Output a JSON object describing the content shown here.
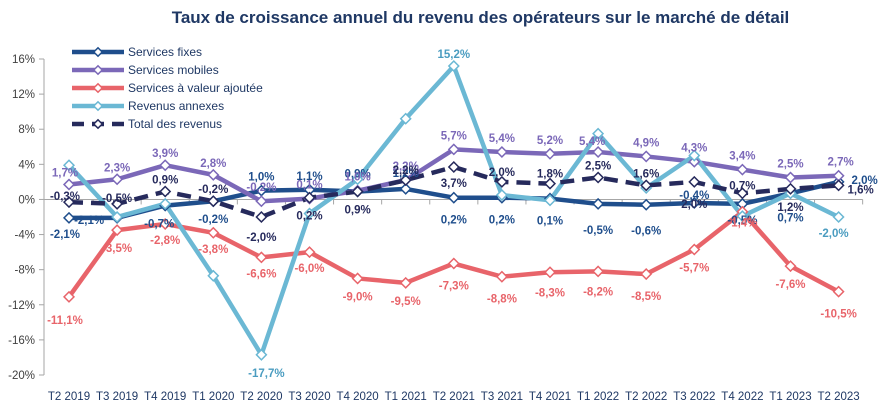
{
  "chart_data": {
    "type": "line",
    "title": "Taux de croissance annuel du revenu des opérateurs sur le marché de détail",
    "xlabel": "",
    "ylabel": "",
    "ylim": [
      -20,
      16
    ],
    "yticks": [
      16,
      12,
      8,
      4,
      0,
      -4,
      -8,
      -12,
      -16,
      -20
    ],
    "ytick_labels": [
      "16%",
      "12%",
      "8%",
      "4%",
      "0%",
      "-4%",
      "-8%",
      "-12%",
      "-16%",
      "-20%"
    ],
    "grid": false,
    "legend_position": "top-left",
    "categories": [
      "T2 2019",
      "T3 2019",
      "T4 2019",
      "T1 2020",
      "T2 2020",
      "T3 2020",
      "T4 2020",
      "T1 2021",
      "T2 2021",
      "T3 2021",
      "T4 2021",
      "T1 2022",
      "T2 2022",
      "T3 2022",
      "T4 2022",
      "T1 2023",
      "T2 2023"
    ],
    "series": [
      {
        "name": "Services fixes",
        "color": "#1f4e8c",
        "dashed": false,
        "values": [
          -2.1,
          -2.1,
          -0.7,
          -0.2,
          1.0,
          1.1,
          0.9,
          1.2,
          0.2,
          0.2,
          0.1,
          -0.5,
          -0.6,
          -0.4,
          -0.5,
          0.7,
          2.0
        ],
        "labels": [
          "-2,1%",
          "-2,1%",
          "-0,7%",
          "-0,2%",
          "1,0%",
          "1,1%",
          "0,9%",
          "1,2%",
          "0,2%",
          "0,2%",
          "0,1%",
          "-0,5%",
          "-0,6%",
          "-0,4%",
          "-0,5%",
          "0,7%",
          "2,0%"
        ]
      },
      {
        "name": "Services mobiles",
        "color": "#7b68b8",
        "dashed": false,
        "values": [
          1.7,
          2.3,
          3.9,
          2.8,
          -0.2,
          0.1,
          1.0,
          2.2,
          5.7,
          5.4,
          5.2,
          5.4,
          4.9,
          4.3,
          3.4,
          2.5,
          2.7
        ],
        "labels": [
          "1,7%",
          "2,3%",
          "3,9%",
          "2,8%",
          "-0,2%",
          "0,1%",
          "1,0%",
          "2,2%",
          "5,7%",
          "5,4%",
          "5,2%",
          "5,4%",
          "4,9%",
          "4,3%",
          "3,4%",
          "2,5%",
          "2,7%"
        ]
      },
      {
        "name": "Services à valeur ajoutée",
        "color": "#e8646a",
        "dashed": false,
        "values": [
          -11.1,
          -3.5,
          -2.8,
          -3.8,
          -6.6,
          -6.0,
          -9.0,
          -9.5,
          -7.3,
          -8.8,
          -8.3,
          -8.2,
          -8.5,
          -5.7,
          -1.4,
          -7.6,
          -10.5
        ],
        "labels": [
          "-11,1%",
          "-3,5%",
          "-2,8%",
          "-3,8%",
          "-6,6%",
          "-6,0%",
          "-9,0%",
          "-9,5%",
          "-7,3%",
          "-8,8%",
          "-8,3%",
          "-8,2%",
          "-8,5%",
          "-5,7%",
          "-1,4%",
          "-7,6%",
          "-10,5%"
        ]
      },
      {
        "name": "Revenus annexes",
        "color": "#6bb8d4",
        "dashed": false,
        "values": [
          3.9,
          -2.0,
          -0.5,
          -8.7,
          -17.7,
          -1.6,
          2.3,
          9.2,
          15.2,
          0.5,
          -0.1,
          7.5,
          1.3,
          5.0,
          -1.9,
          0.7,
          -2.0
        ],
        "labels": [
          "",
          "",
          "",
          "",
          "-17,7%",
          "",
          "",
          "",
          "15,2%",
          "",
          "",
          "",
          "",
          "",
          "",
          "",
          "-2,0%"
        ]
      },
      {
        "name": "Total des revenus",
        "color": "#262a5c",
        "dashed": true,
        "values": [
          -0.3,
          -0.5,
          0.9,
          -0.2,
          -2.0,
          0.2,
          0.9,
          2.2,
          3.7,
          2.0,
          1.8,
          2.5,
          1.6,
          2.0,
          0.7,
          1.2,
          1.6
        ],
        "labels": [
          "-0,3%",
          "-0,5%",
          "0,9%",
          "-0,2%",
          "-2,0%",
          "0,2%",
          "0,9%",
          "2,2%",
          "3,7%",
          "2,0%",
          "1,8%",
          "2,5%",
          "1,6%",
          "2,0%",
          "0,7%",
          "1,2%",
          "1,6%"
        ]
      }
    ]
  }
}
